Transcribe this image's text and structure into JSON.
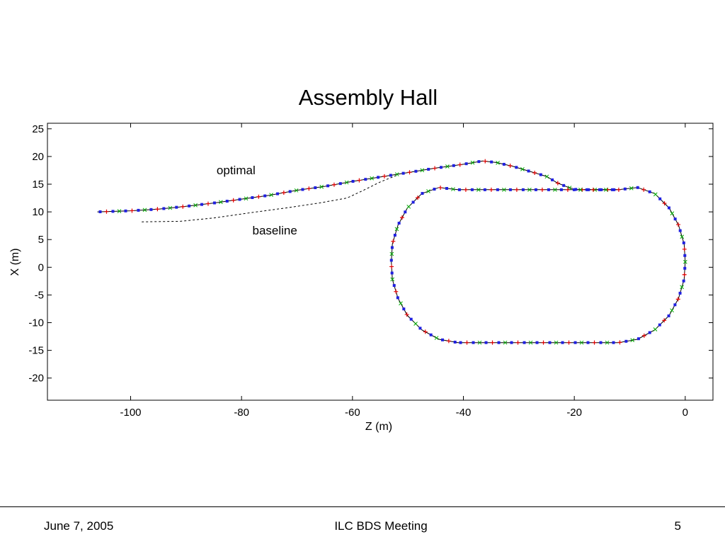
{
  "slide": {
    "footer_left": "June 7, 2005",
    "footer_center": "ILC BDS Meeting",
    "footer_right": "5"
  },
  "chart_data": {
    "type": "line",
    "title": "Assembly Hall",
    "xlabel": "Z (m)",
    "ylabel": "X (m)",
    "xlim": [
      -115,
      5
    ],
    "ylim": [
      -24,
      26
    ],
    "xticks": [
      -100,
      -80,
      -60,
      -40,
      -20,
      0
    ],
    "yticks": [
      25,
      20,
      15,
      10,
      5,
      0,
      -5,
      -10,
      -15,
      -20
    ],
    "grid": false,
    "annotations": [
      {
        "text": "optimal",
        "x": -81,
        "y": 16.8
      },
      {
        "text": "baseline",
        "x": -74,
        "y": 5.9
      }
    ],
    "colors": {
      "beamline": "#000000",
      "quad": "#2020e0",
      "bend": "#e00000",
      "sext": "#00aa00"
    },
    "series": [
      {
        "style": "solid",
        "x": [
          -106,
          -100,
          -95,
          -90,
          -85,
          -80,
          -75,
          -70,
          -65,
          -60,
          -55,
          -50,
          -45,
          -40,
          -36.5,
          -34,
          -31,
          -28,
          -25,
          -23,
          -21,
          -19.5,
          -12
        ],
        "y": [
          10.0,
          10.2,
          10.5,
          11.0,
          11.6,
          12.3,
          13.0,
          13.9,
          14.6,
          15.5,
          16.3,
          17.1,
          17.9,
          18.6,
          19.2,
          18.9,
          18.2,
          17.3,
          16.4,
          15.2,
          14.4,
          14.0,
          14.0
        ]
      },
      {
        "style": "dashed",
        "x": [
          -98,
          -91,
          -85,
          -78,
          -72,
          -66,
          -61,
          -58,
          -55,
          -52
        ],
        "y": [
          8.2,
          8.3,
          8.9,
          9.9,
          10.7,
          11.6,
          12.5,
          13.9,
          15.4,
          16.6
        ]
      },
      {
        "style": "solid",
        "x": [
          -41,
          -44.4,
          -47.5,
          -50.1,
          -51.8,
          -52.8,
          -53.0,
          -52.8,
          -51.8,
          -50.1,
          -47.5,
          -44.4,
          -41,
          -12,
          -8.6,
          -5.5,
          -2.9,
          -1.2,
          -0.2,
          0,
          -0.2,
          -1.2,
          -2.9,
          -5.5,
          -8.6,
          -12,
          -41
        ],
        "y": [
          -13.6,
          -13.0,
          -11.3,
          -8.7,
          -5.6,
          -2.2,
          1.0,
          4.2,
          7.6,
          10.7,
          13.3,
          14.4,
          14.0,
          14.0,
          14.4,
          13.3,
          10.7,
          7.6,
          4.2,
          1.0,
          -2.2,
          -5.6,
          -8.7,
          -11.3,
          -13.0,
          -13.6,
          -13.6
        ]
      }
    ]
  }
}
